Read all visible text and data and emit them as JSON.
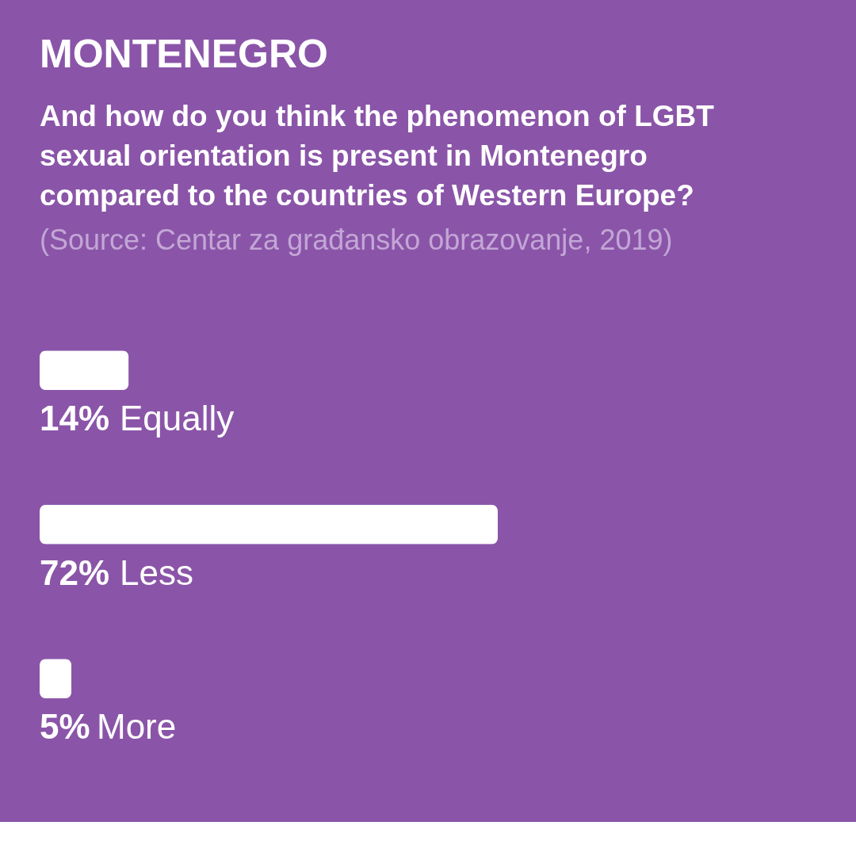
{
  "chart_data": {
    "type": "bar",
    "orientation": "horizontal",
    "title": "MONTENEGRO",
    "subtitle": "And how do you think the phenomenon of LGBT sexual orientation is present in Montenegro compared to the countries of Western Europe?",
    "categories": [
      "Equally",
      "Less",
      "More"
    ],
    "values": [
      14,
      72,
      5
    ],
    "color": "#ffffff",
    "value_labels": [
      "14%",
      "72%",
      "5%"
    ],
    "annotations": [
      "(Source: Centar za građansko obrazovanje, 2019)"
    ]
  }
}
